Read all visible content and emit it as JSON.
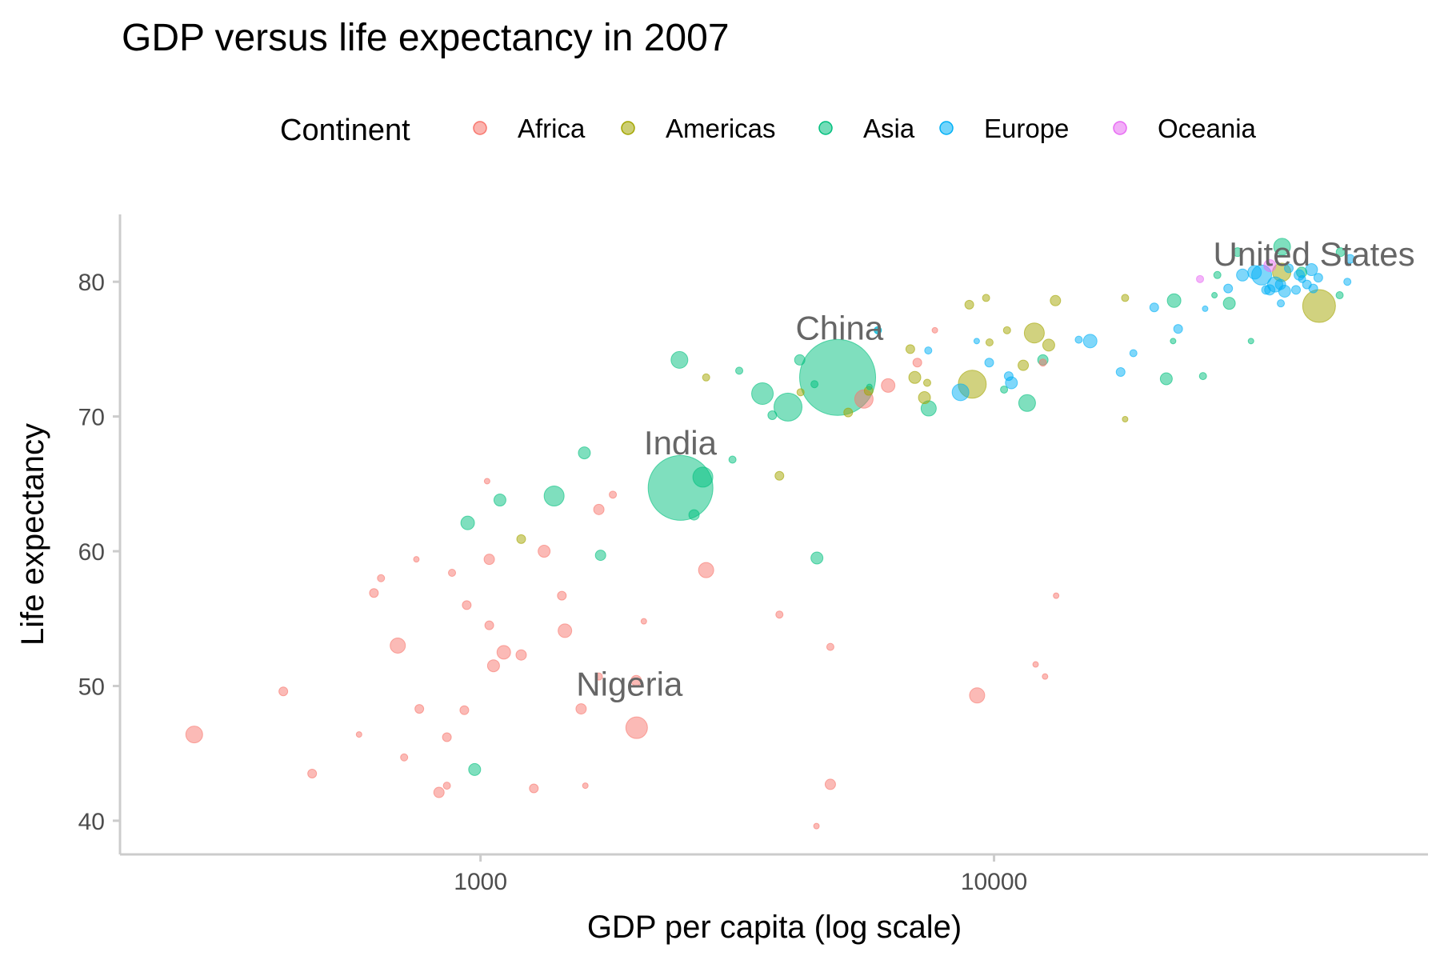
{
  "chart_data": {
    "type": "scatter",
    "title": "GDP versus life expectancy in 2007",
    "xlabel": "GDP per capita (log scale)",
    "ylabel": "Life expectancy",
    "x_scale": "log",
    "xlim": [
      200,
      70000
    ],
    "ylim": [
      37.5,
      85
    ],
    "x_ticks": [
      {
        "value": 1000,
        "label": "1000"
      },
      {
        "value": 10000,
        "label": "10000"
      }
    ],
    "y_ticks": [
      {
        "value": 40,
        "label": "40"
      },
      {
        "value": 50,
        "label": "50"
      },
      {
        "value": 60,
        "label": "60"
      },
      {
        "value": 70,
        "label": "70"
      },
      {
        "value": 80,
        "label": "80"
      }
    ],
    "grid": false,
    "point_size": "population",
    "legend": {
      "title": "Continent",
      "position": "top",
      "entries": [
        {
          "name": "Africa",
          "color": "#F8766D"
        },
        {
          "name": "Americas",
          "color": "#A3A500"
        },
        {
          "name": "Asia",
          "color": "#00BF7D"
        },
        {
          "name": "Europe",
          "color": "#00B0F6"
        },
        {
          "name": "Oceania",
          "color": "#E76BF3"
        }
      ]
    },
    "annotations": [
      {
        "text": "China",
        "x": 5000,
        "y": 75.7
      },
      {
        "text": "India",
        "x": 2450,
        "y": 67.2
      },
      {
        "text": "Nigeria",
        "x": 1950,
        "y": 49.3
      },
      {
        "text": "United States",
        "x": 42000,
        "y": 81.2
      }
    ],
    "series": [
      {
        "name": "Africa",
        "points": [
          [
            277,
            46.4,
            8
          ],
          [
            413,
            49.6,
            3
          ],
          [
            470,
            43.5,
            3
          ],
          [
            580,
            46.4,
            1
          ],
          [
            620,
            56.9,
            3
          ],
          [
            640,
            58.0,
            2
          ],
          [
            690,
            53.0,
            7
          ],
          [
            750,
            59.4,
            1
          ],
          [
            760,
            48.3,
            3
          ],
          [
            710,
            44.7,
            2
          ],
          [
            830,
            42.1,
            4
          ],
          [
            860,
            46.2,
            3
          ],
          [
            860,
            42.6,
            2
          ],
          [
            880,
            58.4,
            2
          ],
          [
            930,
            48.2,
            3
          ],
          [
            940,
            56.0,
            3
          ],
          [
            1040,
            54.5,
            3
          ],
          [
            1040,
            59.4,
            4
          ],
          [
            1060,
            51.5,
            5
          ],
          [
            1110,
            52.5,
            6
          ],
          [
            1200,
            52.3,
            4
          ],
          [
            1270,
            42.4,
            3
          ],
          [
            1330,
            60.0,
            5
          ],
          [
            1440,
            56.7,
            3
          ],
          [
            1460,
            54.1,
            6
          ],
          [
            1570,
            48.3,
            4
          ],
          [
            1600,
            42.6,
            1
          ],
          [
            1700,
            50.7,
            2
          ],
          [
            1700,
            63.1,
            4
          ],
          [
            1810,
            64.2,
            2
          ],
          [
            2010,
            50.4,
            4
          ],
          [
            2014,
            46.9,
            11
          ],
          [
            2080,
            54.8,
            1
          ],
          [
            2750,
            58.6,
            7
          ],
          [
            3820,
            55.3,
            2
          ],
          [
            4510,
            39.6,
            1
          ],
          [
            4800,
            52.9,
            2
          ],
          [
            4800,
            42.7,
            4
          ],
          [
            5580,
            71.3,
            9
          ],
          [
            6220,
            72.3,
            6
          ],
          [
            7090,
            74.0,
            3
          ],
          [
            7670,
            76.4,
            1
          ],
          [
            9270,
            49.3,
            7
          ],
          [
            12050,
            51.6,
            1
          ],
          [
            12570,
            50.7,
            1
          ],
          [
            13210,
            56.7,
            1
          ],
          [
            12450,
            74.0,
            2
          ],
          [
            1030,
            65.2,
            1
          ]
        ]
      },
      {
        "name": "Americas",
        "points": [
          [
            1200,
            60.9,
            3
          ],
          [
            2750,
            72.9,
            2
          ],
          [
            3820,
            65.6,
            3
          ],
          [
            5200,
            70.3,
            3
          ],
          [
            5700,
            71.9,
            3
          ],
          [
            6870,
            75.0,
            3
          ],
          [
            7010,
            72.9,
            5
          ],
          [
            7320,
            71.4,
            5
          ],
          [
            7410,
            72.5,
            2
          ],
          [
            8950,
            78.3,
            3
          ],
          [
            9070,
            72.4,
            15
          ],
          [
            9650,
            78.8,
            2
          ],
          [
            9800,
            75.5,
            2
          ],
          [
            10600,
            76.4,
            2
          ],
          [
            11400,
            73.8,
            4
          ],
          [
            11980,
            76.2,
            10
          ],
          [
            12780,
            75.3,
            5
          ],
          [
            13170,
            78.6,
            4
          ],
          [
            18000,
            78.8,
            2
          ],
          [
            18000,
            69.8,
            1
          ],
          [
            36320,
            80.7,
            9
          ],
          [
            42950,
            78.2,
            18
          ],
          [
            4200,
            71.8,
            2
          ]
        ]
      },
      {
        "name": "Asia",
        "points": [
          [
            944,
            62.1,
            6
          ],
          [
            974,
            43.8,
            5
          ],
          [
            1091,
            63.8,
            5
          ],
          [
            1391,
            64.1,
            10
          ],
          [
            1593,
            67.3,
            5
          ],
          [
            1713,
            59.7,
            4
          ],
          [
            2452,
            64.7,
            38
          ],
          [
            2605,
            62.7,
            4
          ],
          [
            3190,
            73.4,
            2
          ],
          [
            3540,
            71.7,
            11
          ],
          [
            3970,
            70.7,
            15
          ],
          [
            4959,
            72.9,
            45
          ],
          [
            2440,
            74.2,
            8
          ],
          [
            3095,
            66.8,
            2
          ],
          [
            4470,
            72.4,
            2
          ],
          [
            4185,
            74.2,
            4
          ],
          [
            4520,
            59.5,
            5
          ],
          [
            5940,
            76.4,
            2
          ],
          [
            7460,
            70.6,
            7
          ],
          [
            10460,
            72.0,
            2
          ],
          [
            11600,
            71.0,
            8
          ],
          [
            12450,
            74.2,
            4
          ],
          [
            22320,
            75.6,
            1
          ],
          [
            25520,
            73.0,
            2
          ],
          [
            28718,
            78.4,
            5
          ],
          [
            31650,
            75.6,
            1
          ],
          [
            29800,
            82.2,
            3
          ],
          [
            36390,
            82.6,
            8
          ],
          [
            39720,
            80.7,
            4
          ],
          [
            47300,
            82.2,
            3
          ],
          [
            22420,
            78.6,
            6
          ],
          [
            21650,
            72.8,
            5
          ],
          [
            27220,
            80.5,
            2
          ],
          [
            26870,
            79.0,
            1
          ],
          [
            3700,
            70.1,
            3
          ],
          [
            2710,
            65.5,
            10
          ],
          [
            47100,
            79.0,
            2
          ],
          [
            5720,
            72.2,
            1
          ]
        ]
      },
      {
        "name": "Europe",
        "points": [
          [
            5937,
            76.4,
            2
          ],
          [
            7446,
            74.9,
            2
          ],
          [
            8605,
            71.8,
            8
          ],
          [
            9253,
            75.6,
            1
          ],
          [
            9786,
            74.0,
            3
          ],
          [
            10680,
            73.0,
            3
          ],
          [
            10810,
            72.5,
            5
          ],
          [
            14620,
            75.7,
            2
          ],
          [
            15390,
            75.6,
            6
          ],
          [
            17640,
            73.3,
            3
          ],
          [
            18680,
            74.7,
            2
          ],
          [
            20510,
            78.1,
            3
          ],
          [
            22830,
            76.5,
            3
          ],
          [
            25770,
            78.0,
            1
          ],
          [
            28570,
            79.5,
            3
          ],
          [
            30470,
            80.5,
            5
          ],
          [
            32170,
            80.7,
            6
          ],
          [
            33200,
            80.5,
            10
          ],
          [
            33860,
            79.4,
            3
          ],
          [
            34430,
            79.4,
            4
          ],
          [
            35280,
            79.8,
            7
          ],
          [
            36130,
            79.8,
            4
          ],
          [
            36800,
            79.3,
            5
          ],
          [
            38730,
            79.4,
            3
          ],
          [
            39300,
            80.5,
            4
          ],
          [
            40680,
            79.8,
            3
          ],
          [
            41520,
            80.9,
            5
          ],
          [
            48760,
            80.0,
            2
          ],
          [
            49350,
            81.7,
            3
          ],
          [
            36180,
            78.4,
            2
          ],
          [
            37500,
            81.0,
            3
          ],
          [
            42800,
            80.3,
            3
          ],
          [
            41850,
            79.5,
            3
          ],
          [
            39800,
            80.2,
            2
          ]
        ]
      },
      {
        "name": "Oceania",
        "points": [
          [
            25185,
            80.2,
            2
          ],
          [
            34435,
            81.2,
            5
          ]
        ]
      }
    ]
  }
}
